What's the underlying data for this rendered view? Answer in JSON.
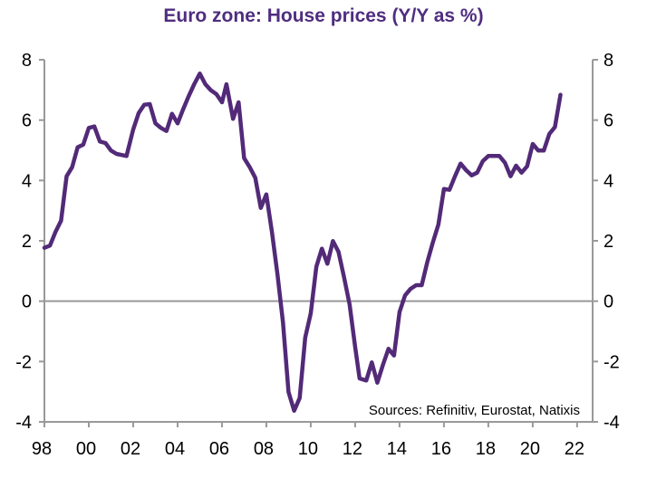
{
  "chart_data": {
    "type": "line",
    "title": "Euro zone: House prices (Y/Y as %)",
    "source": "Sources: Refinitiv, Eurostat, Natixis",
    "xlabel": "",
    "ylabel": "",
    "xlim": [
      1998,
      2022.7
    ],
    "ylim": [
      -4,
      8
    ],
    "y_ticks": [
      "-4",
      "-2",
      "0",
      "2",
      "4",
      "6",
      "8"
    ],
    "y_tick_values": [
      -4,
      -2,
      0,
      2,
      4,
      6,
      8
    ],
    "x_ticks": [
      "98",
      "00",
      "02",
      "04",
      "06",
      "08",
      "10",
      "12",
      "14",
      "16",
      "18",
      "20",
      "22"
    ],
    "x_tick_values": [
      1998,
      2000,
      2002,
      2004,
      2006,
      2008,
      2010,
      2012,
      2014,
      2016,
      2018,
      2020,
      2022
    ],
    "grid": false,
    "zero_line": true,
    "dual_y_axis": true,
    "series_color": "#522a78",
    "axis_color": "#999999",
    "title_color": "#4f2d7f",
    "x": [
      1998.0,
      1998.25,
      1998.5,
      1998.75,
      1999.0,
      1999.25,
      1999.5,
      1999.75,
      2000.0,
      2000.25,
      2000.5,
      2000.75,
      2001.0,
      2001.25,
      2001.7,
      2002.0,
      2002.25,
      2002.5,
      2002.75,
      2003.0,
      2003.25,
      2003.5,
      2003.75,
      2004.0,
      2004.25,
      2004.5,
      2004.75,
      2005.0,
      2005.25,
      2005.5,
      2005.75,
      2006.0,
      2006.2,
      2006.5,
      2006.75,
      2007.0,
      2007.25,
      2007.5,
      2007.75,
      2008.0,
      2008.25,
      2008.5,
      2008.75,
      2009.0,
      2009.25,
      2009.5,
      2009.75,
      2010.0,
      2010.25,
      2010.5,
      2010.75,
      2011.0,
      2011.25,
      2011.5,
      2011.75,
      2012.0,
      2012.2,
      2012.5,
      2012.75,
      2013.0,
      2013.25,
      2013.5,
      2013.75,
      2014.0,
      2014.25,
      2014.5,
      2014.75,
      2015.0,
      2015.25,
      2015.5,
      2015.75,
      2016.0,
      2016.25,
      2016.5,
      2016.75,
      2017.0,
      2017.25,
      2017.5,
      2017.75,
      2018.0,
      2018.25,
      2018.5,
      2018.75,
      2019.0,
      2019.25,
      2019.5,
      2019.75,
      2020.0,
      2020.25,
      2020.5,
      2020.75,
      2021.0,
      2021.25
    ],
    "values": [
      1.77,
      1.84,
      2.29,
      2.67,
      4.14,
      4.44,
      5.1,
      5.19,
      5.74,
      5.79,
      5.29,
      5.24,
      4.99,
      4.88,
      4.81,
      5.69,
      6.24,
      6.51,
      6.53,
      5.89,
      5.74,
      5.64,
      6.21,
      5.89,
      6.36,
      6.79,
      7.19,
      7.54,
      7.19,
      6.99,
      6.86,
      6.59,
      7.19,
      6.04,
      6.59,
      4.74,
      4.44,
      4.09,
      3.09,
      3.54,
      2.29,
      0.89,
      -0.71,
      -3.01,
      -3.63,
      -3.21,
      -1.21,
      -0.41,
      1.14,
      1.74,
      1.24,
      1.99,
      1.64,
      0.79,
      -0.11,
      -1.51,
      -2.56,
      -2.63,
      -2.03,
      -2.7,
      -2.12,
      -1.58,
      -1.8,
      -0.36,
      0.19,
      0.41,
      0.53,
      0.53,
      1.29,
      1.94,
      2.54,
      3.72,
      3.69,
      4.14,
      4.56,
      4.34,
      4.17,
      4.26,
      4.64,
      4.81,
      4.81,
      4.81,
      4.59,
      4.14,
      4.49,
      4.26,
      4.47,
      5.21,
      4.99,
      4.99,
      5.54,
      5.77,
      6.84
    ]
  }
}
